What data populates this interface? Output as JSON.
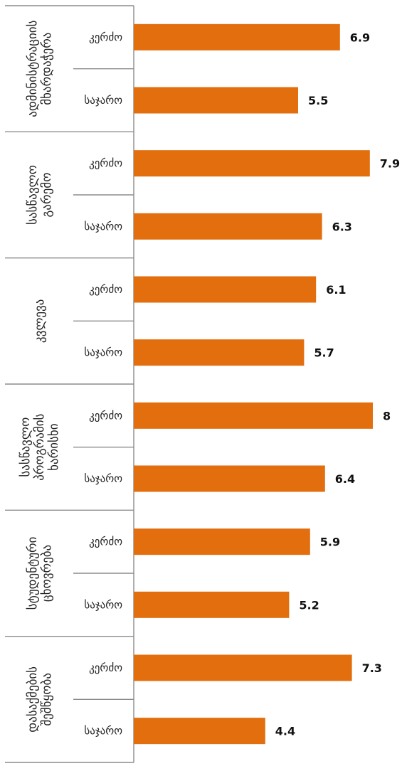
{
  "chart_data": {
    "type": "bar",
    "orientation": "horizontal",
    "bar_color": "#E26E0E",
    "xlim": [
      0,
      8
    ],
    "grid": false,
    "legend": "none",
    "groups": [
      {
        "label": "ადმინისტრაციის მხარდაჭერა",
        "items": [
          {
            "label": "კერძო",
            "value": 6.9,
            "value_label": "6.9"
          },
          {
            "label": "საჯარო",
            "value": 5.5,
            "value_label": "5.5"
          }
        ]
      },
      {
        "label": "სასწავლო გარემო",
        "items": [
          {
            "label": "კერძო",
            "value": 7.9,
            "value_label": "7.9"
          },
          {
            "label": "საჯარო",
            "value": 6.3,
            "value_label": "6.3"
          }
        ]
      },
      {
        "label": "კვლევა",
        "items": [
          {
            "label": "კერძო",
            "value": 6.1,
            "value_label": "6.1"
          },
          {
            "label": "საჯარო",
            "value": 5.7,
            "value_label": "5.7"
          }
        ]
      },
      {
        "label": "სასწავლო პროგრამის ხარისხი",
        "items": [
          {
            "label": "კერძო",
            "value": 8,
            "value_label": "8"
          },
          {
            "label": "საჯარო",
            "value": 6.4,
            "value_label": "6.4"
          }
        ]
      },
      {
        "label": "სტუდენტური ცხოვრება",
        "items": [
          {
            "label": "კერძო",
            "value": 5.9,
            "value_label": "5.9"
          },
          {
            "label": "საჯარო",
            "value": 5.2,
            "value_label": "5.2"
          }
        ]
      },
      {
        "label": "დასაქმების შეშწყობა",
        "items": [
          {
            "label": "კერძო",
            "value": 7.3,
            "value_label": "7.3"
          },
          {
            "label": "საჯარო",
            "value": 4.4,
            "value_label": "4.4"
          }
        ]
      }
    ]
  }
}
